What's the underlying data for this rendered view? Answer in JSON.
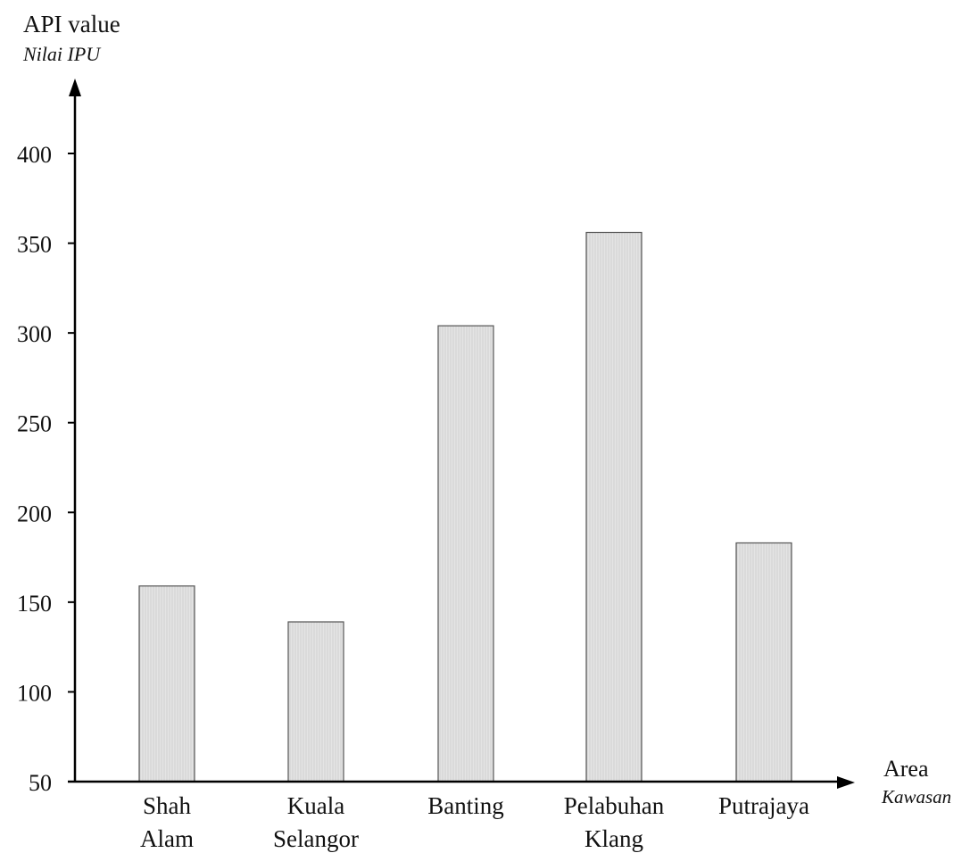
{
  "chart_data": {
    "type": "bar",
    "ylabel": "API value",
    "ylabel_alt": "Nilai IPU",
    "xlabel": "Area",
    "xlabel_alt": "Kawasan",
    "ylim": [
      50,
      400
    ],
    "yticks": [
      50,
      100,
      150,
      200,
      250,
      300,
      350,
      400
    ],
    "categories": [
      [
        "Shah",
        "Alam"
      ],
      [
        "Kuala",
        "Selangor"
      ],
      [
        "Banting"
      ],
      [
        "Pelabuhan",
        "Klang"
      ],
      [
        "Putrajaya"
      ]
    ],
    "values": [
      159,
      139,
      304,
      356,
      183
    ],
    "grid": false,
    "bar_color": "#e2e2e2"
  }
}
